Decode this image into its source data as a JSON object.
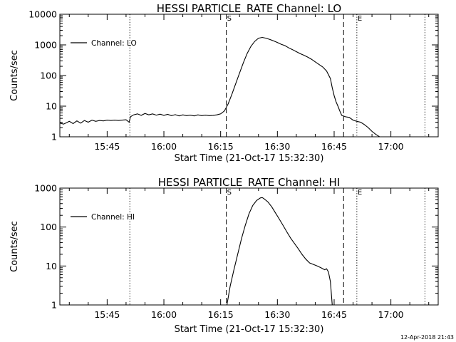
{
  "footer_text": "12-Apr-2018 21:43",
  "chart_data": [
    {
      "type": "line",
      "title": "HESSI PARTICLE_RATE Channel: LO",
      "xlabel": "Start Time (21-Oct-17 15:32:30)",
      "ylabel": "Counts/sec",
      "y_scale": "log",
      "xlim": [
        "15:32:30",
        "17:12:30"
      ],
      "ylim": [
        1,
        10000
      ],
      "x_ticks": [
        "15:45",
        "16:00",
        "16:15",
        "16:30",
        "16:45",
        "17:00"
      ],
      "y_ticks": [
        {
          "value": 1,
          "label": "1"
        },
        {
          "value": 10,
          "label": "10"
        },
        {
          "value": 100,
          "label": "100"
        },
        {
          "value": 1000,
          "label": "1000"
        },
        {
          "value": 10000,
          "label": "10000"
        }
      ],
      "legend": {
        "placement": "top-left",
        "label": "Channel: LO"
      },
      "markers": [
        {
          "time": "15:51:00",
          "label": "",
          "style": "dotted"
        },
        {
          "time": "16:16:30",
          "label": "S",
          "style": "dashed"
        },
        {
          "time": "16:47:30",
          "label": "",
          "style": "dashed"
        },
        {
          "time": "16:51:00",
          "label": "E",
          "style": "dotted"
        },
        {
          "time": "17:09:00",
          "label": "",
          "style": "dotted"
        }
      ],
      "series": [
        {
          "x": [
            "15:32:30",
            "15:33:30",
            "15:35:00",
            "15:36:00",
            "15:37:00",
            "15:38:00",
            "15:39:00",
            "15:40:00",
            "15:41:00",
            "15:42:00",
            "15:43:00",
            "15:44:00",
            "15:45:00",
            "15:46:00",
            "15:47:00",
            "15:48:00",
            "15:49:00",
            "15:50:00",
            "15:50:50",
            "15:51:10",
            "15:52:00",
            "15:53:00",
            "15:54:00",
            "15:55:00",
            "15:56:00",
            "15:57:00",
            "15:58:00",
            "15:59:00",
            "16:00:00",
            "16:01:00",
            "16:02:00",
            "16:03:00",
            "16:04:00",
            "16:05:00",
            "16:06:00",
            "16:07:00",
            "16:08:00",
            "16:09:00",
            "16:10:00",
            "16:11:00",
            "16:12:00",
            "16:13:00",
            "16:14:00",
            "16:15:00",
            "16:16:00",
            "16:17:00",
            "16:18:00",
            "16:19:00",
            "16:20:00",
            "16:21:00",
            "16:22:00",
            "16:23:00",
            "16:24:00",
            "16:25:00",
            "16:26:00",
            "16:27:00",
            "16:28:00",
            "16:29:00",
            "16:30:00",
            "16:31:00",
            "16:32:00",
            "16:33:00",
            "16:34:00",
            "16:35:00",
            "16:36:00",
            "16:37:00",
            "16:38:00",
            "16:39:00",
            "16:40:00",
            "16:41:00",
            "16:42:00",
            "16:43:00",
            "16:44:00",
            "16:44:30",
            "16:45:00",
            "16:45:30",
            "16:46:00",
            "16:46:30",
            "16:47:00",
            "16:48:00",
            "16:49:00",
            "16:50:00",
            "16:51:00",
            "16:52:00",
            "16:53:00",
            "16:54:00",
            "16:55:00",
            "16:56:00",
            "16:57:00",
            "16:58:00",
            "16:59:00",
            "17:00:00",
            "17:01:00",
            "17:02:00",
            "17:03:00",
            "17:04:00",
            "17:05:00",
            "17:06:00",
            "17:07:00",
            "17:08:00",
            "17:09:00"
          ],
          "y": [
            2.8,
            2.6,
            3.2,
            2.7,
            3.3,
            2.8,
            3.4,
            3.0,
            3.5,
            3.2,
            3.4,
            3.3,
            3.5,
            3.4,
            3.5,
            3.4,
            3.5,
            3.6,
            3.0,
            4.5,
            5.2,
            5.6,
            5.0,
            5.8,
            5.2,
            5.6,
            5.1,
            5.5,
            5.0,
            5.4,
            4.9,
            5.3,
            4.8,
            5.2,
            4.9,
            5.1,
            4.8,
            5.2,
            4.9,
            5.1,
            4.9,
            5.0,
            5.2,
            5.6,
            7.0,
            12,
            25,
            55,
            120,
            260,
            520,
            900,
            1300,
            1650,
            1750,
            1650,
            1500,
            1350,
            1200,
            1050,
            950,
            800,
            700,
            600,
            520,
            460,
            400,
            340,
            280,
            230,
            190,
            140,
            80,
            40,
            22,
            14,
            10,
            7,
            5,
            4.5,
            4.3,
            3.5,
            3.2,
            3.0,
            2.5,
            2.0,
            1.5,
            1.2,
            1.0,
            1.0,
            1.0,
            1.0,
            1.0,
            1.0,
            1.0,
            1.0,
            1.0,
            1.0,
            1.0,
            1.0,
            1.0
          ]
        }
      ]
    },
    {
      "type": "line",
      "title": "HESSI PARTICLE_RATE Channel: HI",
      "xlabel": "Start Time (21-Oct-17 15:32:30)",
      "ylabel": "Counts/sec",
      "y_scale": "log",
      "xlim": [
        "15:32:30",
        "17:12:30"
      ],
      "ylim": [
        1,
        1000
      ],
      "x_ticks": [
        "15:45",
        "16:00",
        "16:15",
        "16:30",
        "16:45",
        "17:00"
      ],
      "y_ticks": [
        {
          "value": 1,
          "label": "1"
        },
        {
          "value": 10,
          "label": "10"
        },
        {
          "value": 100,
          "label": "100"
        },
        {
          "value": 1000,
          "label": "1000"
        }
      ],
      "legend": {
        "placement": "top-left",
        "label": "Channel: HI"
      },
      "markers": [
        {
          "time": "15:51:00",
          "label": "",
          "style": "dotted"
        },
        {
          "time": "16:16:30",
          "label": "S",
          "style": "dashed"
        },
        {
          "time": "16:47:30",
          "label": "",
          "style": "dashed"
        },
        {
          "time": "16:51:00",
          "label": "E",
          "style": "dotted"
        },
        {
          "time": "17:09:00",
          "label": "",
          "style": "dotted"
        }
      ],
      "series": [
        {
          "x": [
            "16:16:40",
            "16:17:30",
            "16:18:30",
            "16:19:30",
            "16:20:30",
            "16:21:30",
            "16:22:30",
            "16:23:30",
            "16:24:30",
            "16:25:30",
            "16:26:00",
            "16:26:30",
            "16:27:30",
            "16:28:30",
            "16:29:30",
            "16:30:30",
            "16:31:30",
            "16:32:30",
            "16:33:30",
            "16:34:30",
            "16:35:30",
            "16:36:30",
            "16:37:30",
            "16:38:30",
            "16:39:30",
            "16:40:30",
            "16:41:30",
            "16:42:30",
            "16:43:00",
            "16:43:30",
            "16:44:00",
            "16:44:30"
          ],
          "y": [
            1.0,
            3.0,
            8.0,
            20,
            50,
            110,
            220,
            360,
            480,
            560,
            570,
            530,
            440,
            330,
            230,
            160,
            110,
            75,
            52,
            38,
            28,
            20,
            15,
            12,
            11,
            10,
            9,
            8,
            8.5,
            7,
            4,
            1.0
          ]
        }
      ]
    }
  ]
}
